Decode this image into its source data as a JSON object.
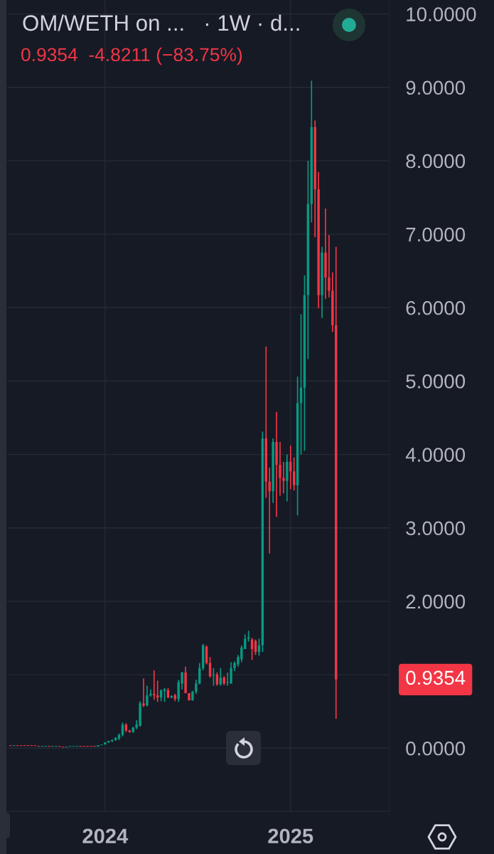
{
  "chart_data": {
    "type": "candlestick",
    "title": "OM/WETH on ...   · 1W · d...",
    "subtitle": "0.9354  -4.8211 (−83.75%)",
    "x": [
      "2023-06-26",
      "2023-07-03",
      "2023-07-10",
      "2023-07-17",
      "2023-07-24",
      "2023-07-31",
      "2023-08-07",
      "2023-08-14",
      "2023-08-21",
      "2023-08-28",
      "2023-09-04",
      "2023-09-11",
      "2023-09-18",
      "2023-09-25",
      "2023-10-02",
      "2023-10-09",
      "2023-10-16",
      "2023-10-23",
      "2023-10-30",
      "2023-11-06",
      "2023-11-13",
      "2023-11-20",
      "2023-11-27",
      "2023-12-04",
      "2023-12-11",
      "2023-12-18",
      "2023-12-25",
      "2024-01-01",
      "2024-01-08",
      "2024-01-15",
      "2024-01-22",
      "2024-01-29",
      "2024-02-05",
      "2024-02-12",
      "2024-02-19",
      "2024-02-26",
      "2024-03-04",
      "2024-03-11",
      "2024-03-18",
      "2024-03-25",
      "2024-04-01",
      "2024-04-08",
      "2024-04-15",
      "2024-04-22",
      "2024-04-29",
      "2024-05-06",
      "2024-05-13",
      "2024-05-20",
      "2024-05-27",
      "2024-06-03",
      "2024-06-10",
      "2024-06-17",
      "2024-06-24",
      "2024-07-01",
      "2024-07-08",
      "2024-07-15",
      "2024-07-22",
      "2024-07-29",
      "2024-08-05",
      "2024-08-12",
      "2024-08-19",
      "2024-08-26",
      "2024-09-02",
      "2024-09-09",
      "2024-09-16",
      "2024-09-23",
      "2024-09-30",
      "2024-10-07",
      "2024-10-14",
      "2024-10-21",
      "2024-10-28",
      "2024-11-04",
      "2024-11-11",
      "2024-11-18",
      "2024-11-25",
      "2024-12-02",
      "2024-12-09",
      "2024-12-16",
      "2024-12-23",
      "2024-12-30",
      "2025-01-06",
      "2025-01-13",
      "2025-01-20",
      "2025-01-27",
      "2025-02-03",
      "2025-02-10",
      "2025-02-17",
      "2025-02-24",
      "2025-03-03",
      "2025-03-10",
      "2025-03-17",
      "2025-03-24",
      "2025-03-31",
      "2025-04-07"
    ],
    "ohlc": [
      [
        0.04,
        0.04,
        0.03,
        0.03
      ],
      [
        0.03,
        0.04,
        0.03,
        0.04
      ],
      [
        0.04,
        0.04,
        0.03,
        0.03
      ],
      [
        0.04,
        0.04,
        0.03,
        0.03
      ],
      [
        0.04,
        0.04,
        0.03,
        0.03
      ],
      [
        0.04,
        0.04,
        0.03,
        0.03
      ],
      [
        0.04,
        0.04,
        0.03,
        0.03
      ],
      [
        0.04,
        0.04,
        0.03,
        0.03
      ],
      [
        0.03,
        0.03,
        0.02,
        0.02
      ],
      [
        0.02,
        0.03,
        0.02,
        0.03
      ],
      [
        0.02,
        0.03,
        0.02,
        0.03
      ],
      [
        0.03,
        0.03,
        0.02,
        0.02
      ],
      [
        0.02,
        0.03,
        0.02,
        0.03
      ],
      [
        0.02,
        0.03,
        0.02,
        0.03
      ],
      [
        0.03,
        0.03,
        0.02,
        0.02
      ],
      [
        0.02,
        0.02,
        0.01,
        0.01
      ],
      [
        0.01,
        0.02,
        0.01,
        0.02
      ],
      [
        0.02,
        0.03,
        0.02,
        0.03
      ],
      [
        0.02,
        0.03,
        0.02,
        0.03
      ],
      [
        0.02,
        0.03,
        0.02,
        0.03
      ],
      [
        0.03,
        0.03,
        0.02,
        0.02
      ],
      [
        0.03,
        0.03,
        0.02,
        0.02
      ],
      [
        0.03,
        0.03,
        0.02,
        0.02
      ],
      [
        0.03,
        0.03,
        0.02,
        0.02
      ],
      [
        0.03,
        0.03,
        0.02,
        0.02
      ],
      [
        0.02,
        0.04,
        0.02,
        0.04
      ],
      [
        0.04,
        0.05,
        0.04,
        0.05
      ],
      [
        0.05,
        0.08,
        0.05,
        0.08
      ],
      [
        0.08,
        0.1,
        0.07,
        0.1
      ],
      [
        0.1,
        0.12,
        0.08,
        0.11
      ],
      [
        0.11,
        0.15,
        0.1,
        0.14
      ],
      [
        0.13,
        0.2,
        0.11,
        0.18
      ],
      [
        0.18,
        0.35,
        0.16,
        0.32
      ],
      [
        0.32,
        0.34,
        0.22,
        0.24
      ],
      [
        0.24,
        0.25,
        0.21,
        0.22
      ],
      [
        0.22,
        0.29,
        0.21,
        0.28
      ],
      [
        0.28,
        0.38,
        0.26,
        0.32
      ],
      [
        0.3,
        0.64,
        0.3,
        0.61
      ],
      [
        0.61,
        0.95,
        0.56,
        0.58
      ],
      [
        0.58,
        0.85,
        0.57,
        0.72
      ],
      [
        0.72,
        0.8,
        0.7,
        0.74
      ],
      [
        0.74,
        1.06,
        0.66,
        0.72
      ],
      [
        0.72,
        0.92,
        0.63,
        0.69
      ],
      [
        0.69,
        0.8,
        0.64,
        0.79
      ],
      [
        0.78,
        0.82,
        0.63,
        0.8
      ],
      [
        0.79,
        0.82,
        0.68,
        0.69
      ],
      [
        0.69,
        0.72,
        0.68,
        0.71
      ],
      [
        0.72,
        0.74,
        0.64,
        0.67
      ],
      [
        0.67,
        0.93,
        0.63,
        0.9
      ],
      [
        0.88,
        1.04,
        0.8,
        1.03
      ],
      [
        1.03,
        1.11,
        0.75,
        0.75
      ],
      [
        0.75,
        0.75,
        0.65,
        0.65
      ],
      [
        0.65,
        0.78,
        0.65,
        0.77
      ],
      [
        0.77,
        0.93,
        0.74,
        0.88
      ],
      [
        0.88,
        1.16,
        0.87,
        1.09
      ],
      [
        1.09,
        1.42,
        1.06,
        1.4
      ],
      [
        1.38,
        1.4,
        1.14,
        1.16
      ],
      [
        1.16,
        1.24,
        0.96,
        0.98
      ],
      [
        0.99,
        1.09,
        0.85,
        1.0
      ],
      [
        1.0,
        1.03,
        0.85,
        0.87
      ],
      [
        0.87,
        1.09,
        0.85,
        0.96
      ],
      [
        0.96,
        0.98,
        0.86,
        0.88
      ],
      [
        0.89,
        1.03,
        0.85,
        0.9
      ],
      [
        0.88,
        1.17,
        0.88,
        1.09
      ],
      [
        1.09,
        1.18,
        1.05,
        1.16
      ],
      [
        1.14,
        1.27,
        1.11,
        1.24
      ],
      [
        1.21,
        1.4,
        1.17,
        1.37
      ],
      [
        1.35,
        1.55,
        1.35,
        1.49
      ],
      [
        1.49,
        1.6,
        1.45,
        1.51
      ],
      [
        1.48,
        1.5,
        1.2,
        1.35
      ],
      [
        1.46,
        1.48,
        1.27,
        1.31
      ],
      [
        1.31,
        1.49,
        1.26,
        1.4
      ],
      [
        1.4,
        4.31,
        1.31,
        4.22
      ],
      [
        4.22,
        5.47,
        3.41,
        3.63
      ],
      [
        3.63,
        3.82,
        2.65,
        3.5
      ],
      [
        3.5,
        4.22,
        3.34,
        4.17
      ],
      [
        4.17,
        4.58,
        3.15,
        3.86
      ],
      [
        3.86,
        4.17,
        3.44,
        3.68
      ],
      [
        3.68,
        3.9,
        3.47,
        3.64
      ],
      [
        3.64,
        4.0,
        3.36,
        3.9
      ],
      [
        3.9,
        4.12,
        3.53,
        3.77
      ],
      [
        3.77,
        3.96,
        3.51,
        3.58
      ],
      [
        3.58,
        5.06,
        3.17,
        4.7
      ],
      [
        4.7,
        5.91,
        4.0,
        4.91
      ],
      [
        4.91,
        6.44,
        4.05,
        6.17
      ],
      [
        6.17,
        8.0,
        5.3,
        7.41
      ],
      [
        7.41,
        9.09,
        7.16,
        8.46
      ],
      [
        8.46,
        8.55,
        6.96,
        7.61
      ],
      [
        7.61,
        7.85,
        5.99,
        6.17
      ],
      [
        6.17,
        6.83,
        5.86,
        6.75
      ],
      [
        6.75,
        7.35,
        6.12,
        6.41
      ],
      [
        6.41,
        6.99,
        6.14,
        6.23
      ],
      [
        6.23,
        6.48,
        5.67,
        5.76
      ],
      [
        5.76,
        6.83,
        0.4,
        0.9354
      ]
    ],
    "colors": [
      "#f23645",
      "#089981",
      "#f23645",
      "#f23645",
      "#f23645",
      "#f23645",
      "#f23645",
      "#f23645",
      "#f23645",
      "#089981",
      "#089981",
      "#f23645",
      "#089981",
      "#089981",
      "#f23645",
      "#f23645",
      "#089981",
      "#089981",
      "#089981",
      "#089981",
      "#f23645",
      "#f23645",
      "#f23645",
      "#f23645",
      "#f23645",
      "#089981",
      "#089981",
      "#089981",
      "#089981",
      "#089981",
      "#089981",
      "#089981",
      "#089981",
      "#f23645",
      "#f23645",
      "#089981",
      "#089981",
      "#089981",
      "#f23645",
      "#089981",
      "#089981",
      "#f23645",
      "#f23645",
      "#089981",
      "#089981",
      "#f23645",
      "#089981",
      "#f23645",
      "#089981",
      "#089981",
      "#f23645",
      "#f23645",
      "#089981",
      "#089981",
      "#089981",
      "#089981",
      "#f23645",
      "#f23645",
      "#089981",
      "#f23645",
      "#089981",
      "#f23645",
      "#089981",
      "#089981",
      "#089981",
      "#089981",
      "#089981",
      "#089981",
      "#089981",
      "#f23645",
      "#f23645",
      "#089981",
      "#089981",
      "#f23645",
      "#f23645",
      "#089981",
      "#f23645",
      "#f23645",
      "#f23645",
      "#089981",
      "#f23645",
      "#f23645",
      "#089981",
      "#089981",
      "#089981",
      "#089981",
      "#089981",
      "#f23645",
      "#f23645",
      "#089981",
      "#f23645",
      "#f23645",
      "#f23645",
      "#f23645"
    ],
    "xlim": [
      "2023-06-19",
      "2025-07-23"
    ],
    "xticks": [
      {
        "value": "2024-01-01",
        "label": "2024"
      },
      {
        "value": "2025-01-06",
        "label": "2025"
      }
    ],
    "ylim": [
      -0.86,
      10.19
    ],
    "yticks": [
      {
        "value": 0,
        "label": "0.0000"
      },
      {
        "value": 1,
        "label": null
      },
      {
        "value": 2,
        "label": "2.0000"
      },
      {
        "value": 3,
        "label": "3.0000"
      },
      {
        "value": 4,
        "label": "4.0000"
      },
      {
        "value": 5,
        "label": "5.0000"
      },
      {
        "value": 6,
        "label": "6.0000"
      },
      {
        "value": 7,
        "label": "7.0000"
      },
      {
        "value": 8,
        "label": "8.0000"
      },
      {
        "value": 9,
        "label": "9.0000"
      },
      {
        "value": 10,
        "label": "10.0000"
      }
    ],
    "grid": true,
    "annotations": [
      "0.9354"
    ]
  }
}
